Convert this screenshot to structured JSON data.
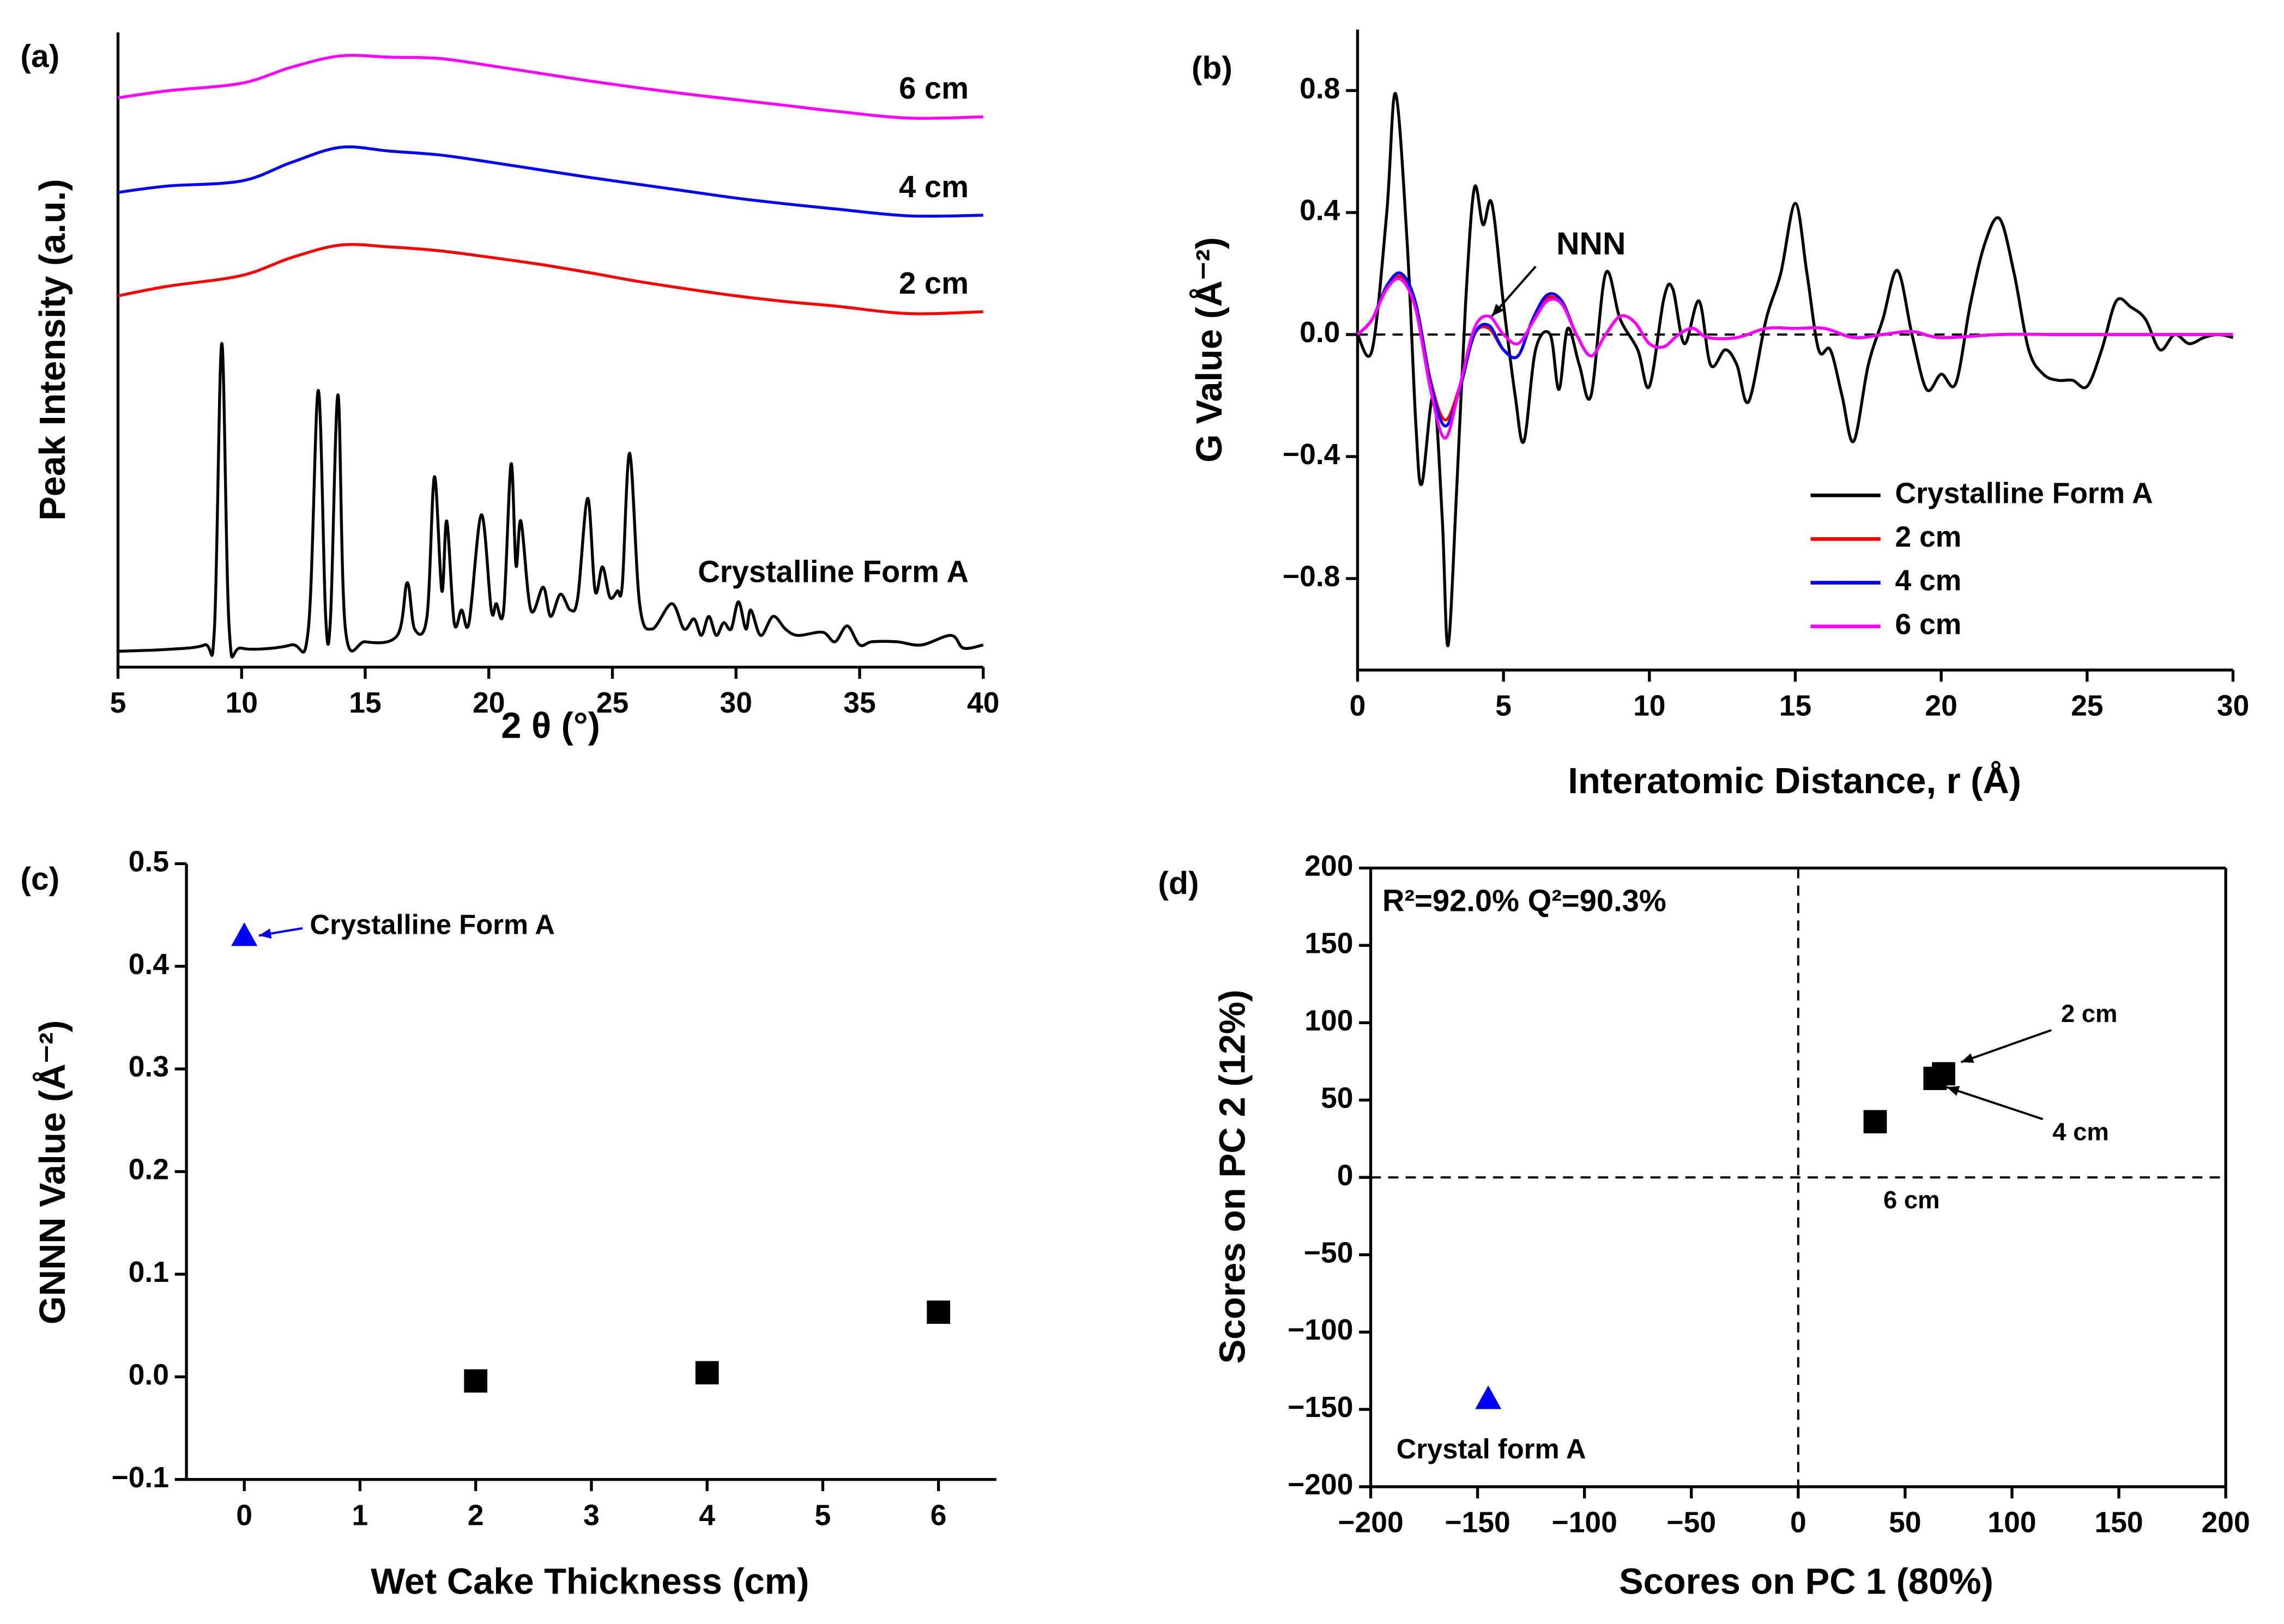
{
  "chart_data": [
    {
      "type": "line",
      "label": "(a)",
      "xlabel": "2 θ (°)",
      "ylabel": "Peak Intensity (a.u.)",
      "xlim": [
        5,
        40
      ],
      "xticks": [
        5,
        10,
        15,
        20,
        25,
        30,
        35,
        40
      ],
      "ylim": [
        0,
        100
      ],
      "inline_labels": true,
      "series": [
        {
          "name": "Crystalline Form A",
          "color": "#000000",
          "x": [
            5,
            7,
            8.5,
            8.9,
            9.2,
            9.5,
            10,
            12,
            12.7,
            13.1,
            13.4,
            13.6,
            13.9,
            14.2,
            15,
            16.3,
            16.7,
            17,
            17.5,
            17.8,
            18.1,
            18.3,
            18.6,
            18.9,
            19.2,
            19.7,
            20.1,
            20.3,
            20.6,
            20.9,
            21.1,
            21.3,
            21.7,
            22.2,
            22.5,
            22.9,
            23.3,
            23.6,
            24,
            24.3,
            24.6,
            24.9,
            25.2,
            25.4,
            25.7,
            26.1,
            26.6,
            27.4,
            27.9,
            28.3,
            28.6,
            28.9,
            29.2,
            29.5,
            29.8,
            30.1,
            30.4,
            30.6,
            31,
            31.5,
            32,
            32.5,
            33.5,
            34,
            34.5,
            35,
            35.5,
            36.5,
            37.5,
            38.7,
            39.2,
            40
          ],
          "values": [
            2.5,
            2.8,
            3.5,
            6,
            51,
            6,
            3,
            3.5,
            6,
            43.6,
            8,
            8,
            42.9,
            6,
            4,
            5,
            13.3,
            6,
            8,
            30,
            12,
            23,
            7,
            9,
            7,
            24,
            9,
            10,
            9,
            32,
            16,
            23,
            9,
            12.6,
            8,
            11.5,
            9,
            11,
            26.6,
            12,
            15.8,
            11,
            12,
            13,
            33.7,
            10,
            6,
            10,
            6,
            7.6,
            5,
            8,
            5,
            7,
            6,
            10.3,
            6,
            9,
            5,
            8,
            6,
            5,
            5.5,
            4,
            6.5,
            3.5,
            4,
            4,
            3.5,
            5,
            3,
            3.5
          ]
        },
        {
          "name": "2 cm",
          "color": "#ff0000",
          "x": [
            5,
            7,
            10,
            12,
            14,
            16,
            18,
            20,
            22,
            24,
            26,
            28,
            30,
            32,
            34,
            37,
            40
          ],
          "values": [
            58.5,
            60,
            61.7,
            64.5,
            66.5,
            66.2,
            65.6,
            64.6,
            63.5,
            62.2,
            60.8,
            59.6,
            58.5,
            57.6,
            56.9,
            55.7,
            56
          ]
        },
        {
          "name": "4 cm",
          "color": "#0000ff",
          "x": [
            5,
            7,
            10,
            12,
            14,
            16,
            18,
            20,
            22,
            24,
            26,
            28,
            30,
            32,
            34,
            37,
            40
          ],
          "values": [
            74.8,
            75.8,
            76.6,
            79.5,
            81.9,
            81.3,
            80.7,
            79.6,
            78.4,
            77.2,
            76.1,
            75,
            73.9,
            73,
            72.2,
            71.1,
            71.2
          ]
        },
        {
          "name": "6 cm",
          "color": "#ff00ff",
          "x": [
            5,
            7,
            10,
            12,
            14,
            16,
            18,
            20,
            22,
            24,
            26,
            28,
            30,
            32,
            34,
            37,
            40
          ],
          "values": [
            89.7,
            90.8,
            92,
            94.5,
            96.3,
            96.1,
            95.9,
            94.8,
            93.6,
            92.4,
            91.3,
            90.3,
            89.4,
            88.5,
            87.6,
            86.5,
            86.7
          ]
        }
      ]
    },
    {
      "type": "line",
      "label": "(b)",
      "xlabel": "Interatomic Distance, r (Å)",
      "ylabel": "G Value (Å⁻²)",
      "xlim": [
        0,
        30
      ],
      "xticks": [
        0,
        5,
        10,
        15,
        20,
        25,
        30
      ],
      "ylim": [
        -1.1,
        1.0
      ],
      "yticks": [
        {
          "value": -0.8,
          "label": "−0.8"
        },
        {
          "value": -0.4,
          "label": "−0.4"
        },
        {
          "value": 0,
          "label": "0.0"
        },
        0.4,
        0.8
      ],
      "hlines": [
        0
      ],
      "legend": "lower right",
      "annotations": [
        "NNN"
      ],
      "series": [
        {
          "name": "Crystalline Form A",
          "color": "#000000",
          "x": [
            0,
            0.5,
            1,
            1.3,
            1.7,
            2,
            2.2,
            2.6,
            2.9,
            3.1,
            3.4,
            3.7,
            4,
            4.3,
            4.6,
            5,
            5.4,
            5.7,
            6.1,
            6.6,
            6.9,
            7.2,
            7.6,
            8,
            8.5,
            9,
            9.6,
            10,
            10.5,
            10.8,
            11.2,
            11.7,
            12.1,
            12.6,
            13,
            13.4,
            14,
            14.5,
            15,
            15.4,
            15.8,
            16.2,
            16.6,
            17,
            17.5,
            18,
            18.5,
            19,
            19.5,
            20,
            20.5,
            21,
            21.5,
            22,
            22.5,
            23,
            23.5,
            24,
            24.5,
            25,
            25.5,
            26,
            26.5,
            27,
            27.5,
            28,
            28.5,
            29,
            29.5,
            30
          ],
          "values": [
            0,
            -0.05,
            0.4,
            0.79,
            0.3,
            -0.3,
            -0.49,
            -0.2,
            -0.6,
            -1.02,
            -0.5,
            0.1,
            0.48,
            0.36,
            0.43,
            0.1,
            -0.2,
            -0.35,
            -0.05,
            0,
            -0.18,
            0.02,
            -0.1,
            -0.2,
            0.2,
            0.05,
            -0.05,
            -0.17,
            0.12,
            0.15,
            -0.03,
            0.11,
            -0.1,
            -0.05,
            -0.1,
            -0.22,
            0.05,
            0.2,
            0.43,
            0.2,
            -0.05,
            -0.05,
            -0.2,
            -0.35,
            -0.1,
            0.05,
            0.21,
            0,
            -0.18,
            -0.13,
            -0.16,
            0.1,
            0.3,
            0.38,
            0.2,
            -0.05,
            -0.13,
            -0.15,
            -0.15,
            -0.17,
            -0.05,
            0.11,
            0.09,
            0.05,
            -0.05,
            0,
            -0.03,
            -0.01,
            0,
            -0.01
          ]
        },
        {
          "name": "2 cm",
          "color": "#ff0000",
          "x": [
            0,
            0.5,
            1,
            1.5,
            2,
            2.5,
            3,
            3.5,
            4,
            4.5,
            5,
            5.5,
            6,
            6.5,
            7,
            7.5,
            8,
            8.5,
            9,
            9.5,
            10,
            10.5,
            11,
            11.5,
            12,
            13,
            14,
            15,
            16,
            17,
            18,
            19,
            20,
            22,
            24,
            26,
            28,
            30
          ],
          "values": [
            0,
            0.05,
            0.15,
            0.19,
            0.1,
            -0.15,
            -0.28,
            -0.17,
            0,
            0.02,
            -0.05,
            -0.07,
            0.05,
            0.12,
            0.1,
            0,
            -0.07,
            0,
            0.06,
            0.04,
            -0.03,
            -0.04,
            0,
            0.02,
            -0.01,
            -0.01,
            0.02,
            0.02,
            0.02,
            -0.01,
            0,
            0.01,
            -0.01,
            0,
            0,
            0,
            0,
            0
          ]
        },
        {
          "name": "4 cm",
          "color": "#0000ff",
          "x": [
            0,
            0.5,
            1,
            1.5,
            2,
            2.5,
            3,
            3.5,
            4,
            4.5,
            5,
            5.5,
            6,
            6.5,
            7,
            7.5,
            8,
            8.5,
            9,
            9.5,
            10,
            10.5,
            11,
            11.5,
            12,
            13,
            14,
            15,
            16,
            17,
            18,
            19,
            20,
            22,
            24,
            26,
            28,
            30
          ],
          "values": [
            0,
            0.05,
            0.16,
            0.2,
            0.1,
            -0.16,
            -0.3,
            -0.18,
            0,
            0.03,
            -0.05,
            -0.07,
            0.05,
            0.13,
            0.11,
            0,
            -0.07,
            0,
            0.06,
            0.04,
            -0.03,
            -0.04,
            0,
            0.02,
            -0.01,
            -0.01,
            0.02,
            0.02,
            0.02,
            -0.01,
            0,
            0.01,
            -0.01,
            0,
            0,
            0,
            0,
            0
          ]
        },
        {
          "name": "6 cm",
          "color": "#ff00ff",
          "x": [
            0,
            0.5,
            1,
            1.5,
            2,
            2.5,
            3,
            3.5,
            4,
            4.5,
            5,
            5.5,
            6,
            6.5,
            7,
            7.5,
            8,
            8.5,
            9,
            9.5,
            10,
            10.5,
            11,
            11.5,
            12,
            13,
            14,
            15,
            16,
            17,
            18,
            19,
            20,
            22,
            24,
            26,
            28,
            30
          ],
          "values": [
            0,
            0.05,
            0.15,
            0.18,
            0.08,
            -0.18,
            -0.34,
            -0.17,
            0.02,
            0.06,
            0,
            -0.03,
            0.04,
            0.11,
            0.1,
            0,
            -0.07,
            0,
            0.06,
            0.04,
            -0.03,
            -0.04,
            0,
            0.02,
            -0.01,
            -0.01,
            0.02,
            0.02,
            0.02,
            -0.01,
            0,
            0.01,
            -0.01,
            0,
            0,
            0,
            0,
            0
          ]
        }
      ]
    },
    {
      "type": "scatter",
      "label": "(c)",
      "xlabel": "Wet Cake Thickness (cm)",
      "ylabel": "GNNN Value (Å⁻²)",
      "xlim": [
        -0.5,
        6.5
      ],
      "xticks": [
        0,
        1,
        2,
        3,
        4,
        5,
        6
      ],
      "ylim": [
        -0.1,
        0.5
      ],
      "yticks": [
        {
          "value": -0.1,
          "label": "−0.1"
        },
        {
          "value": 0,
          "label": "0.0"
        },
        0.1,
        0.2,
        0.3,
        0.4,
        0.5
      ],
      "series": [
        {
          "name": "Crystalline Form A",
          "color": "#0000ff",
          "marker": "triangle",
          "x": [
            0
          ],
          "values": [
            0.43
          ]
        },
        {
          "color": "#000000",
          "marker": "square",
          "x": [
            2,
            4,
            6
          ],
          "values": [
            -0.004,
            0.004,
            0.063
          ]
        }
      ]
    },
    {
      "type": "scatter",
      "label": "(d)",
      "xlabel": "Scores on PC 1 (80%)",
      "ylabel": "Scores on PC 2 (12%)",
      "xlim": [
        -200,
        200
      ],
      "xticks": [
        {
          "value": -200,
          "label": "−200"
        },
        {
          "value": -150,
          "label": "−150"
        },
        {
          "value": -100,
          "label": "−100"
        },
        {
          "value": -50,
          "label": "−50"
        },
        0,
        50,
        100,
        150,
        200
      ],
      "ylim": [
        -200,
        200
      ],
      "yticks": [
        {
          "value": -200,
          "label": "−200"
        },
        {
          "value": -150,
          "label": "−150"
        },
        {
          "value": -100,
          "label": "−100"
        },
        {
          "value": -50,
          "label": "−50"
        },
        0,
        50,
        100,
        150,
        200
      ],
      "hlines": [
        0
      ],
      "vlines": [
        0
      ],
      "frame": true,
      "annotations": [
        "R²=92.0% Q²=90.3%"
      ],
      "series": [
        {
          "name": "Crystal form A",
          "color": "#0000ff",
          "marker": "triangle",
          "x": [
            -145
          ],
          "values": [
            -143
          ]
        },
        {
          "color": "#000000",
          "marker": "square",
          "x": [
            68,
            64,
            36
          ],
          "values": [
            67,
            64,
            36
          ],
          "point_labels": [
            "2 cm",
            "4 cm",
            "6 cm"
          ]
        }
      ]
    }
  ]
}
